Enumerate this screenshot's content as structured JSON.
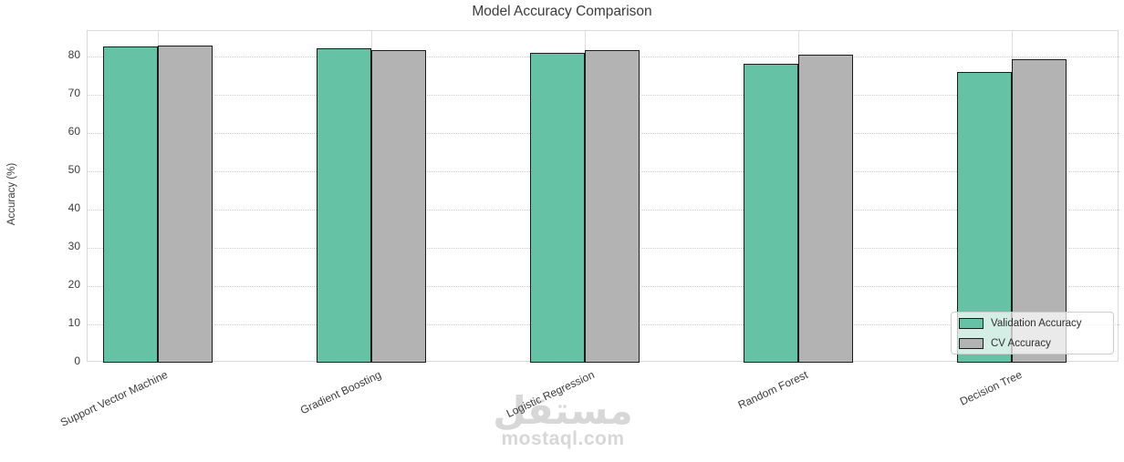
{
  "watermark": {
    "logo_text": "مستقل",
    "domain": "mostaql.com"
  },
  "chart_data": {
    "type": "bar",
    "title": "Model Accuracy Comparison",
    "xlabel": "",
    "ylabel": "Accuracy (%)",
    "categories": [
      "Support Vector Machine",
      "Gradient Boosting",
      "Logistic Regression",
      "Random Forest",
      "Decision Tree"
    ],
    "series": [
      {
        "name": "Validation Accuracy",
        "color": "#66c2a5",
        "values": [
          82.5,
          82.0,
          81.0,
          78.1,
          75.9
        ]
      },
      {
        "name": "CV Accuracy",
        "color": "#b3b3b3",
        "values": [
          82.8,
          81.7,
          81.6,
          80.5,
          79.3
        ]
      }
    ],
    "ylim": [
      0,
      86.6
    ],
    "yticks": [
      0,
      10,
      20,
      30,
      40,
      50,
      60,
      70,
      80
    ],
    "grid": true,
    "legend_position": "lower right",
    "bar_edge_color": "#1c1c1c",
    "grid_color": "#d9d9d9",
    "text_color": "#3c3c3c"
  }
}
